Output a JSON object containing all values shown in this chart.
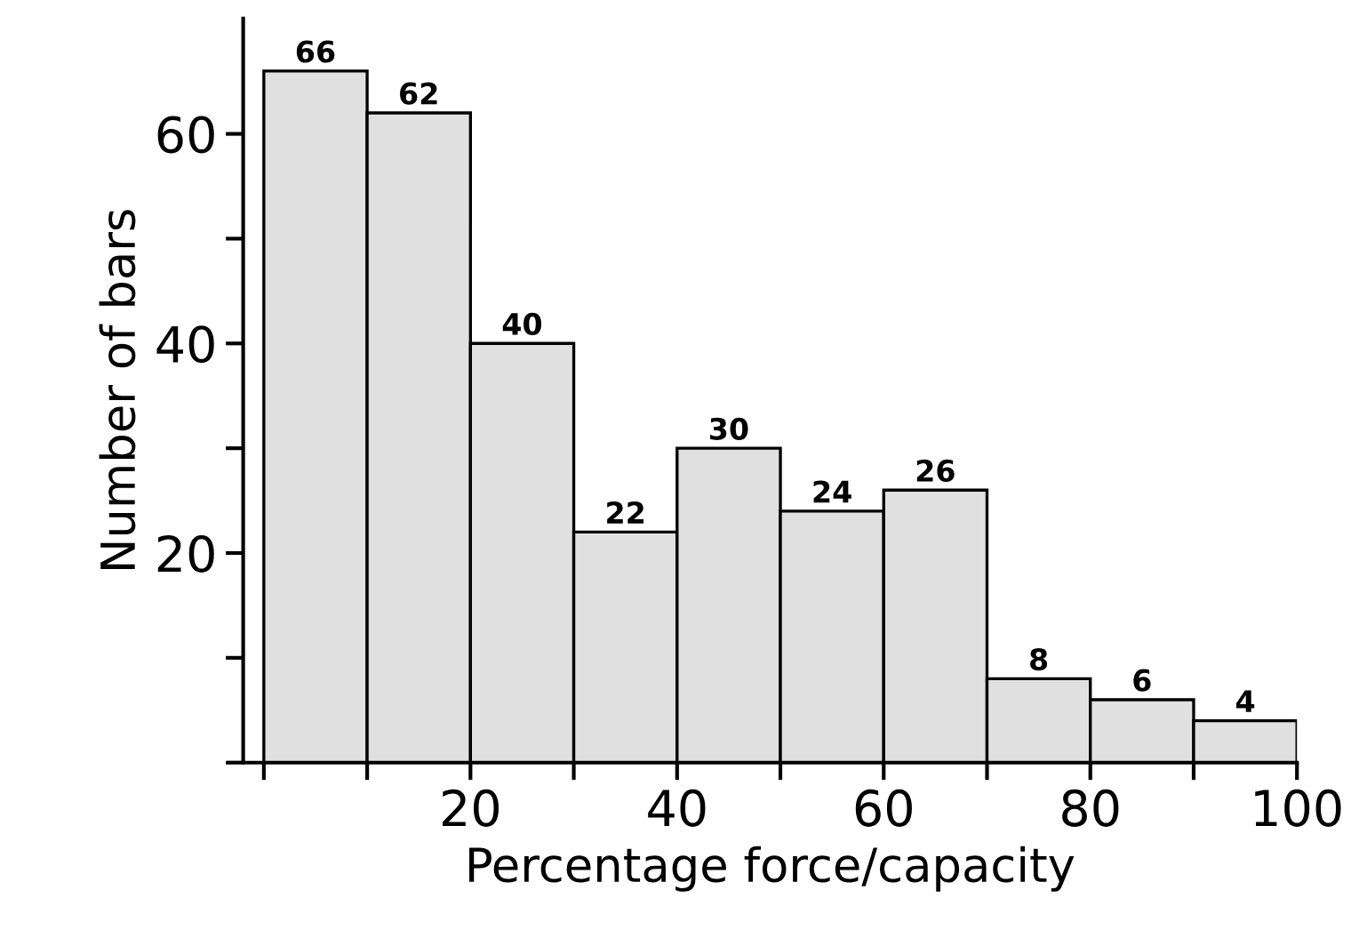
{
  "chart_data": {
    "type": "histogram",
    "xlabel": "Percentage force/capacity",
    "ylabel": "Number of bars",
    "bins": [
      0,
      10,
      20,
      30,
      40,
      50,
      60,
      70,
      80,
      90,
      100
    ],
    "values": [
      66,
      62,
      40,
      22,
      30,
      24,
      26,
      8,
      6,
      4
    ],
    "color": "#e0e0e0",
    "data_labels": true,
    "grid": false,
    "xlim": [
      -2,
      100
    ],
    "ylim": [
      0,
      71
    ],
    "xticks": [
      {
        "value": 0,
        "label": null
      },
      {
        "value": 10,
        "label": null
      },
      20,
      {
        "value": 30,
        "label": null
      },
      40,
      {
        "value": 50,
        "label": null
      },
      60,
      {
        "value": 70,
        "label": null
      },
      80,
      {
        "value": 90,
        "label": null
      },
      100
    ],
    "yticks": [
      {
        "value": 0,
        "label": null
      },
      {
        "value": 10,
        "label": null
      },
      20,
      {
        "value": 30,
        "label": null
      },
      40,
      {
        "value": 50,
        "label": null
      },
      60
    ]
  }
}
